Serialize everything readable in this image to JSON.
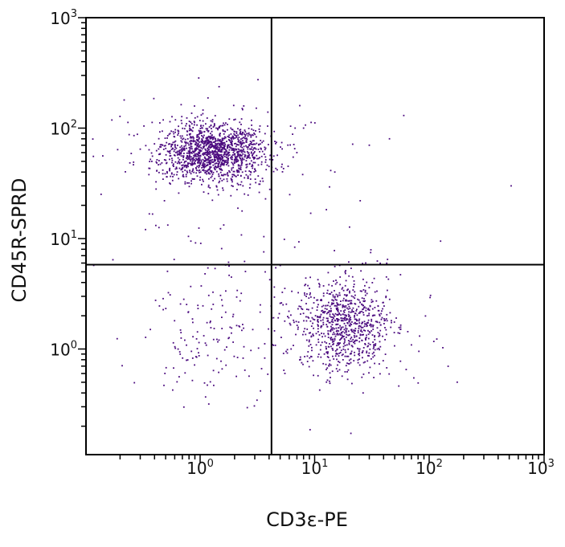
{
  "chart_data": {
    "type": "scatter",
    "xlabel": "CD3ε-PE",
    "ylabel": "CD45R-SPRD",
    "x_scale": "log",
    "y_scale": "log",
    "xlim": [
      0.12,
      1000
    ],
    "ylim": [
      0.05,
      1000
    ],
    "x_ticks": [
      {
        "base": "10",
        "exp": "0",
        "value": 1
      },
      {
        "base": "10",
        "exp": "1",
        "value": 10
      },
      {
        "base": "10",
        "exp": "2",
        "value": 100
      },
      {
        "base": "10",
        "exp": "3",
        "value": 1000
      }
    ],
    "y_ticks": [
      {
        "base": "10",
        "exp": "0",
        "value": 1
      },
      {
        "base": "10",
        "exp": "1",
        "value": 10
      },
      {
        "base": "10",
        "exp": "2",
        "value": 100
      },
      {
        "base": "10",
        "exp": "3",
        "value": 1000
      }
    ],
    "quadrant_gate": {
      "x": 4.2,
      "y": 5.8
    },
    "point_color": "#4b0a7f",
    "clusters": [
      {
        "population": "CD45R+ CD3ε-",
        "center": [
          1.3,
          60
        ],
        "approx_count": 1500
      },
      {
        "population": "CD45R- CD3ε+",
        "center": [
          18,
          1.7
        ],
        "approx_count": 900
      },
      {
        "population": "CD45R- CD3ε-",
        "center": [
          1.3,
          1.4
        ],
        "approx_count": 170
      }
    ]
  }
}
